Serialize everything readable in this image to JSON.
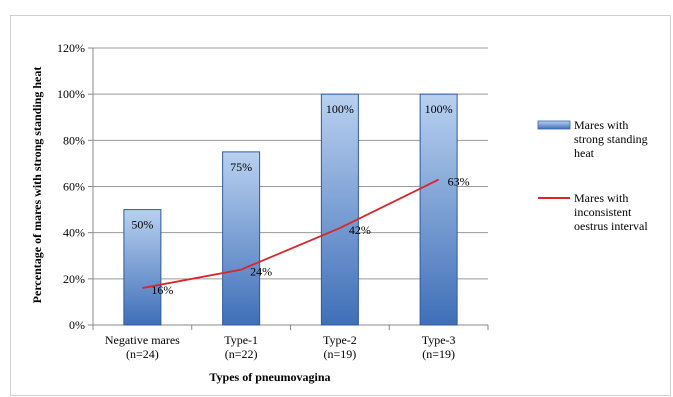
{
  "chart_data": {
    "type": "bar",
    "categories": [
      [
        "Negative mares",
        "(n=24)"
      ],
      [
        "Type-1",
        "(n=22)"
      ],
      [
        "Type-2",
        "(n=19)"
      ],
      [
        "Type-3",
        "(n=19)"
      ]
    ],
    "series": [
      {
        "name": [
          "Mares with",
          "strong standing",
          "heat"
        ],
        "type": "bar",
        "values": [
          50,
          75,
          100,
          100
        ],
        "labels": [
          "50%",
          "75%",
          "100%",
          "100%"
        ],
        "color": "#4f81bd"
      },
      {
        "name": [
          "Mares with",
          "inconsistent",
          "oestrus interval"
        ],
        "type": "line",
        "values": [
          16,
          24,
          42,
          63
        ],
        "labels": [
          "16%",
          "24%",
          "42%",
          "63%"
        ],
        "color": "#d9262b"
      }
    ],
    "ylim": [
      0,
      120
    ],
    "yticks": [
      "0%",
      "20%",
      "40%",
      "60%",
      "80%",
      "100%",
      "120%"
    ],
    "ytick_values": [
      0,
      20,
      40,
      60,
      80,
      100,
      120
    ],
    "xlabel": "Types of pneumovagina",
    "ylabel": "Percentage of mares with strong standing heat",
    "grid": true,
    "legend": "right"
  }
}
